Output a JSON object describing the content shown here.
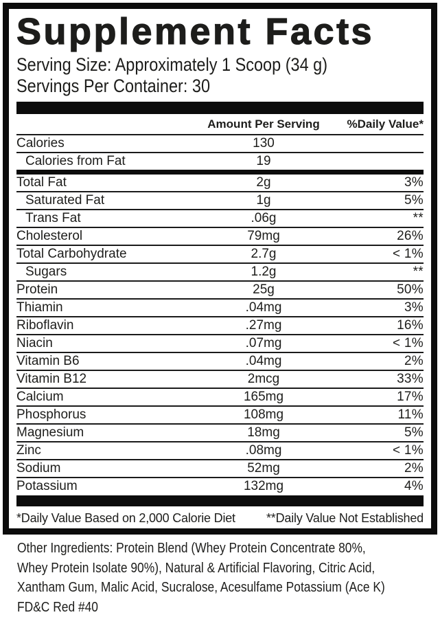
{
  "label": {
    "title": "Supplement Facts",
    "serving_size": "Serving Size: Approximately 1 Scoop (34 g)",
    "servings_per_container": "Servings Per Container: 30",
    "columns": {
      "amount": "Amount Per Serving",
      "dv": "%Daily Value*"
    },
    "rows": [
      {
        "name": "Calories",
        "amount": "130",
        "dv": "",
        "indent": false,
        "sep": "none"
      },
      {
        "name": "Calories from Fat",
        "amount": "19",
        "dv": "",
        "indent": true,
        "sep": "thin"
      },
      {
        "name": "Total Fat",
        "amount": "2g",
        "dv": "3%",
        "indent": false,
        "sep": "medium"
      },
      {
        "name": "Saturated Fat",
        "amount": "1g",
        "dv": "5%",
        "indent": true,
        "sep": "thin"
      },
      {
        "name": "Trans Fat",
        "amount": ".06g",
        "dv": "**",
        "indent": true,
        "sep": "thin"
      },
      {
        "name": "Cholesterol",
        "amount": "79mg",
        "dv": "26%",
        "indent": false,
        "sep": "thin"
      },
      {
        "name": "Total Carbohydrate",
        "amount": "2.7g",
        "dv": "< 1%",
        "indent": false,
        "sep": "thin"
      },
      {
        "name": "Sugars",
        "amount": "1.2g",
        "dv": "**",
        "indent": true,
        "sep": "thin"
      },
      {
        "name": "Protein",
        "amount": "25g",
        "dv": "50%",
        "indent": false,
        "sep": "thin"
      },
      {
        "name": "Thiamin",
        "amount": ".04mg",
        "dv": "3%",
        "indent": false,
        "sep": "thin"
      },
      {
        "name": "Riboflavin",
        "amount": ".27mg",
        "dv": "16%",
        "indent": false,
        "sep": "thin"
      },
      {
        "name": "Niacin",
        "amount": ".07mg",
        "dv": "< 1%",
        "indent": false,
        "sep": "thin"
      },
      {
        "name": "Vitamin B6",
        "amount": ".04mg",
        "dv": "2%",
        "indent": false,
        "sep": "thin"
      },
      {
        "name": "Vitamin B12",
        "amount": "2mcg",
        "dv": "33%",
        "indent": false,
        "sep": "thin"
      },
      {
        "name": "Calcium",
        "amount": "165mg",
        "dv": "17%",
        "indent": false,
        "sep": "thin"
      },
      {
        "name": "Phosphorus",
        "amount": "108mg",
        "dv": "11%",
        "indent": false,
        "sep": "thin"
      },
      {
        "name": "Magnesium",
        "amount": "18mg",
        "dv": "5%",
        "indent": false,
        "sep": "thin"
      },
      {
        "name": "Zinc",
        "amount": ".08mg",
        "dv": "< 1%",
        "indent": false,
        "sep": "thin"
      },
      {
        "name": "Sodium",
        "amount": "52mg",
        "dv": "2%",
        "indent": false,
        "sep": "thin"
      },
      {
        "name": "Potassium",
        "amount": "132mg",
        "dv": "4%",
        "indent": false,
        "sep": "thin"
      }
    ],
    "footnotes": {
      "left": "*Daily Value Based on 2,000 Calorie Diet",
      "right": "**Daily Value Not Established"
    },
    "other_ingredients_lines": [
      "Other Ingredients: Protein Blend (Whey Protein Concentrate 80%,",
      "Whey Protein Isolate 90%), Natural & Artificial Flavoring, Citric Acid,",
      "Xantham Gum, Malic Acid, Sucralose, Acesulfame Potassium (Ace K)",
      "FD&C Red #40"
    ]
  },
  "colors": {
    "text": "#1d1d1b",
    "border": "#0c0c0c",
    "background": "#ffffff"
  }
}
